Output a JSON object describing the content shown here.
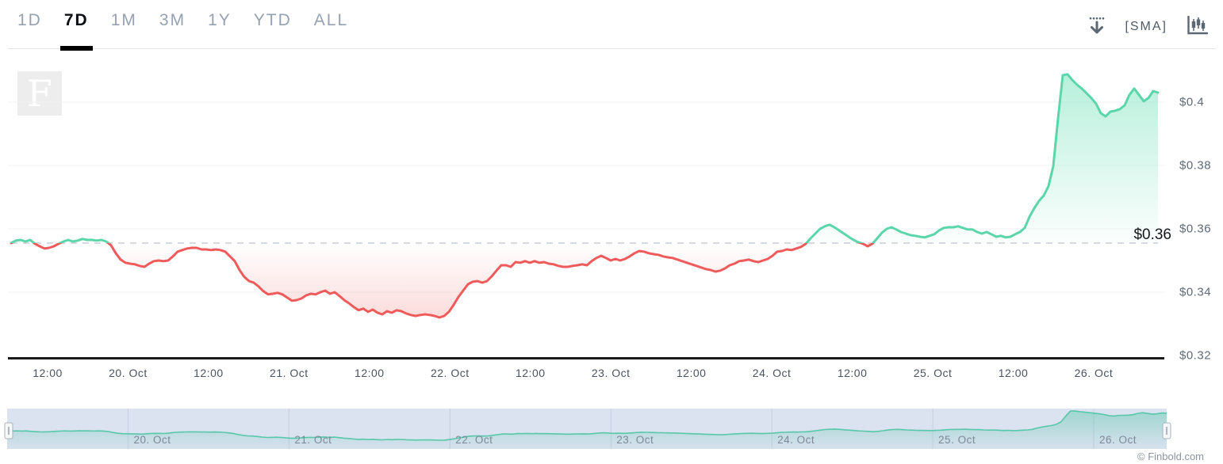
{
  "header": {
    "ranges": [
      {
        "label": "1D",
        "active": false
      },
      {
        "label": "7D",
        "active": true
      },
      {
        "label": "1M",
        "active": false
      },
      {
        "label": "3M",
        "active": false
      },
      {
        "label": "1Y",
        "active": false
      },
      {
        "label": "YTD",
        "active": false
      },
      {
        "label": "ALL",
        "active": false
      }
    ],
    "tools": {
      "download_icon": "download-icon",
      "sma_label": "[SMA]",
      "chart_type_icon": "candlestick-chart-icon"
    }
  },
  "watermark": {
    "letter": "F"
  },
  "chart_data": {
    "type": "line",
    "title": "7 day price chart",
    "currency": "USD",
    "days": 7,
    "threshold_price": 0.3555,
    "threshold_label": "$0.36",
    "last_price": 0.403,
    "min_price": 0.332,
    "max_price": 0.4088,
    "grid": true,
    "y_axis": {
      "labels": [
        "$0.4",
        "$0.38",
        "$0.36",
        "$0.34",
        "$0.32"
      ],
      "values": [
        0.4,
        0.38,
        0.36,
        0.34,
        0.32
      ],
      "min": 0.32,
      "max": 0.412
    },
    "x_axis": {
      "labels": [
        "12:00",
        "20. Oct",
        "12:00",
        "21. Oct",
        "12:00",
        "22. Oct",
        "12:00",
        "23. Oct",
        "12:00",
        "24. Oct",
        "12:00",
        "25. Oct",
        "12:00",
        "26. Oct"
      ]
    },
    "colors": {
      "above_threshold": "#5bd6aa",
      "below_threshold": "#ef5a5a",
      "threshold_line": "#c8cdd5",
      "axis_line": "#1a1a1a"
    },
    "series": [
      {
        "name": "price",
        "prices": [
          0.3555,
          0.3563,
          0.3565,
          0.356,
          0.3565,
          0.3553,
          0.3545,
          0.3538,
          0.354,
          0.3545,
          0.3553,
          0.356,
          0.3565,
          0.356,
          0.3563,
          0.3568,
          0.3565,
          0.3565,
          0.3563,
          0.3565,
          0.356,
          0.3548,
          0.3523,
          0.3503,
          0.3493,
          0.349,
          0.3488,
          0.3483,
          0.348,
          0.349,
          0.3498,
          0.35,
          0.3498,
          0.35,
          0.3513,
          0.3528,
          0.3533,
          0.3538,
          0.354,
          0.354,
          0.3535,
          0.3535,
          0.3533,
          0.3535,
          0.3533,
          0.3528,
          0.3513,
          0.3498,
          0.347,
          0.3448,
          0.3435,
          0.343,
          0.3418,
          0.3403,
          0.3393,
          0.3395,
          0.3398,
          0.3393,
          0.3383,
          0.3373,
          0.3375,
          0.338,
          0.339,
          0.3395,
          0.3393,
          0.34,
          0.3405,
          0.3395,
          0.34,
          0.3388,
          0.3375,
          0.3365,
          0.3353,
          0.3343,
          0.3348,
          0.3338,
          0.3345,
          0.3335,
          0.333,
          0.334,
          0.3335,
          0.3343,
          0.334,
          0.3333,
          0.3328,
          0.3325,
          0.3328,
          0.333,
          0.3328,
          0.3325,
          0.332,
          0.3325,
          0.3338,
          0.336,
          0.3385,
          0.3405,
          0.3425,
          0.3433,
          0.3435,
          0.343,
          0.3435,
          0.345,
          0.3468,
          0.3485,
          0.3485,
          0.348,
          0.3495,
          0.3493,
          0.3498,
          0.3493,
          0.3498,
          0.3493,
          0.3495,
          0.349,
          0.3488,
          0.3483,
          0.348,
          0.348,
          0.3483,
          0.3485,
          0.3488,
          0.3485,
          0.3498,
          0.3508,
          0.3515,
          0.3508,
          0.35,
          0.3505,
          0.35,
          0.3505,
          0.3513,
          0.3523,
          0.353,
          0.3528,
          0.3523,
          0.352,
          0.3518,
          0.3513,
          0.351,
          0.3508,
          0.3503,
          0.3498,
          0.3493,
          0.3488,
          0.3483,
          0.3478,
          0.3473,
          0.347,
          0.3465,
          0.3468,
          0.3475,
          0.3485,
          0.349,
          0.3498,
          0.35,
          0.3503,
          0.3498,
          0.3495,
          0.35,
          0.3505,
          0.3515,
          0.3528,
          0.353,
          0.3535,
          0.3533,
          0.3538,
          0.3543,
          0.3553,
          0.357,
          0.3585,
          0.36,
          0.3608,
          0.3613,
          0.3605,
          0.3595,
          0.3585,
          0.3575,
          0.3565,
          0.3558,
          0.3553,
          0.3545,
          0.3553,
          0.357,
          0.3588,
          0.36,
          0.3605,
          0.3598,
          0.359,
          0.3585,
          0.358,
          0.3578,
          0.3575,
          0.3573,
          0.3578,
          0.3583,
          0.3595,
          0.3603,
          0.3605,
          0.3605,
          0.3608,
          0.3603,
          0.3598,
          0.3598,
          0.359,
          0.3585,
          0.359,
          0.3583,
          0.3575,
          0.3578,
          0.3573,
          0.3575,
          0.3583,
          0.359,
          0.3603,
          0.3638,
          0.3665,
          0.3688,
          0.3705,
          0.3735,
          0.3798,
          0.3948,
          0.4085,
          0.4088,
          0.407,
          0.4055,
          0.4043,
          0.4028,
          0.4013,
          0.3995,
          0.3965,
          0.3955,
          0.397,
          0.3973,
          0.3978,
          0.399,
          0.4023,
          0.4043,
          0.4023,
          0.4003,
          0.4013,
          0.4035,
          0.403
        ]
      }
    ]
  },
  "navigator": {
    "labels": [
      "20. Oct",
      "21. Oct",
      "22. Oct",
      "23. Oct",
      "24. Oct",
      "25. Oct",
      "26. Oct"
    ],
    "line_color": "#57c8a9",
    "bg_color": "#dbe2f0",
    "gridline_color": "#c5cee2"
  },
  "footer": {
    "credit": "© Finbold.com"
  }
}
